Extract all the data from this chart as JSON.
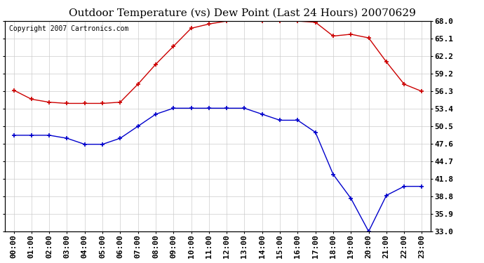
{
  "title": "Outdoor Temperature (vs) Dew Point (Last 24 Hours) 20070629",
  "copyright_text": "Copyright 2007 Cartronics.com",
  "hours": [
    "00:00",
    "01:00",
    "02:00",
    "03:00",
    "04:00",
    "05:00",
    "06:00",
    "07:00",
    "08:00",
    "09:00",
    "10:00",
    "11:00",
    "12:00",
    "13:00",
    "14:00",
    "15:00",
    "16:00",
    "17:00",
    "18:00",
    "19:00",
    "20:00",
    "21:00",
    "22:00",
    "23:00"
  ],
  "temp_red": [
    56.5,
    55.0,
    54.5,
    54.3,
    54.3,
    54.3,
    54.5,
    57.5,
    60.8,
    63.8,
    66.8,
    67.5,
    68.0,
    68.5,
    68.0,
    68.0,
    68.0,
    67.8,
    65.5,
    65.8,
    65.2,
    61.2,
    57.5,
    56.3
  ],
  "dew_blue": [
    49.0,
    49.0,
    49.0,
    48.5,
    47.5,
    47.5,
    48.5,
    50.5,
    52.5,
    53.5,
    53.5,
    53.5,
    53.5,
    53.5,
    52.5,
    51.5,
    51.5,
    49.5,
    42.5,
    38.5,
    33.0,
    39.0,
    40.5,
    40.5
  ],
  "ylim": [
    33.0,
    68.0
  ],
  "yticks": [
    33.0,
    35.9,
    38.8,
    41.8,
    44.7,
    47.6,
    50.5,
    53.4,
    56.3,
    59.2,
    62.2,
    65.1,
    68.0
  ],
  "bg_color": "#ffffff",
  "grid_color": "#cccccc",
  "red_color": "#cc0000",
  "blue_color": "#0000cc",
  "title_fontsize": 11,
  "copy_fontsize": 7,
  "tick_fontsize": 8
}
